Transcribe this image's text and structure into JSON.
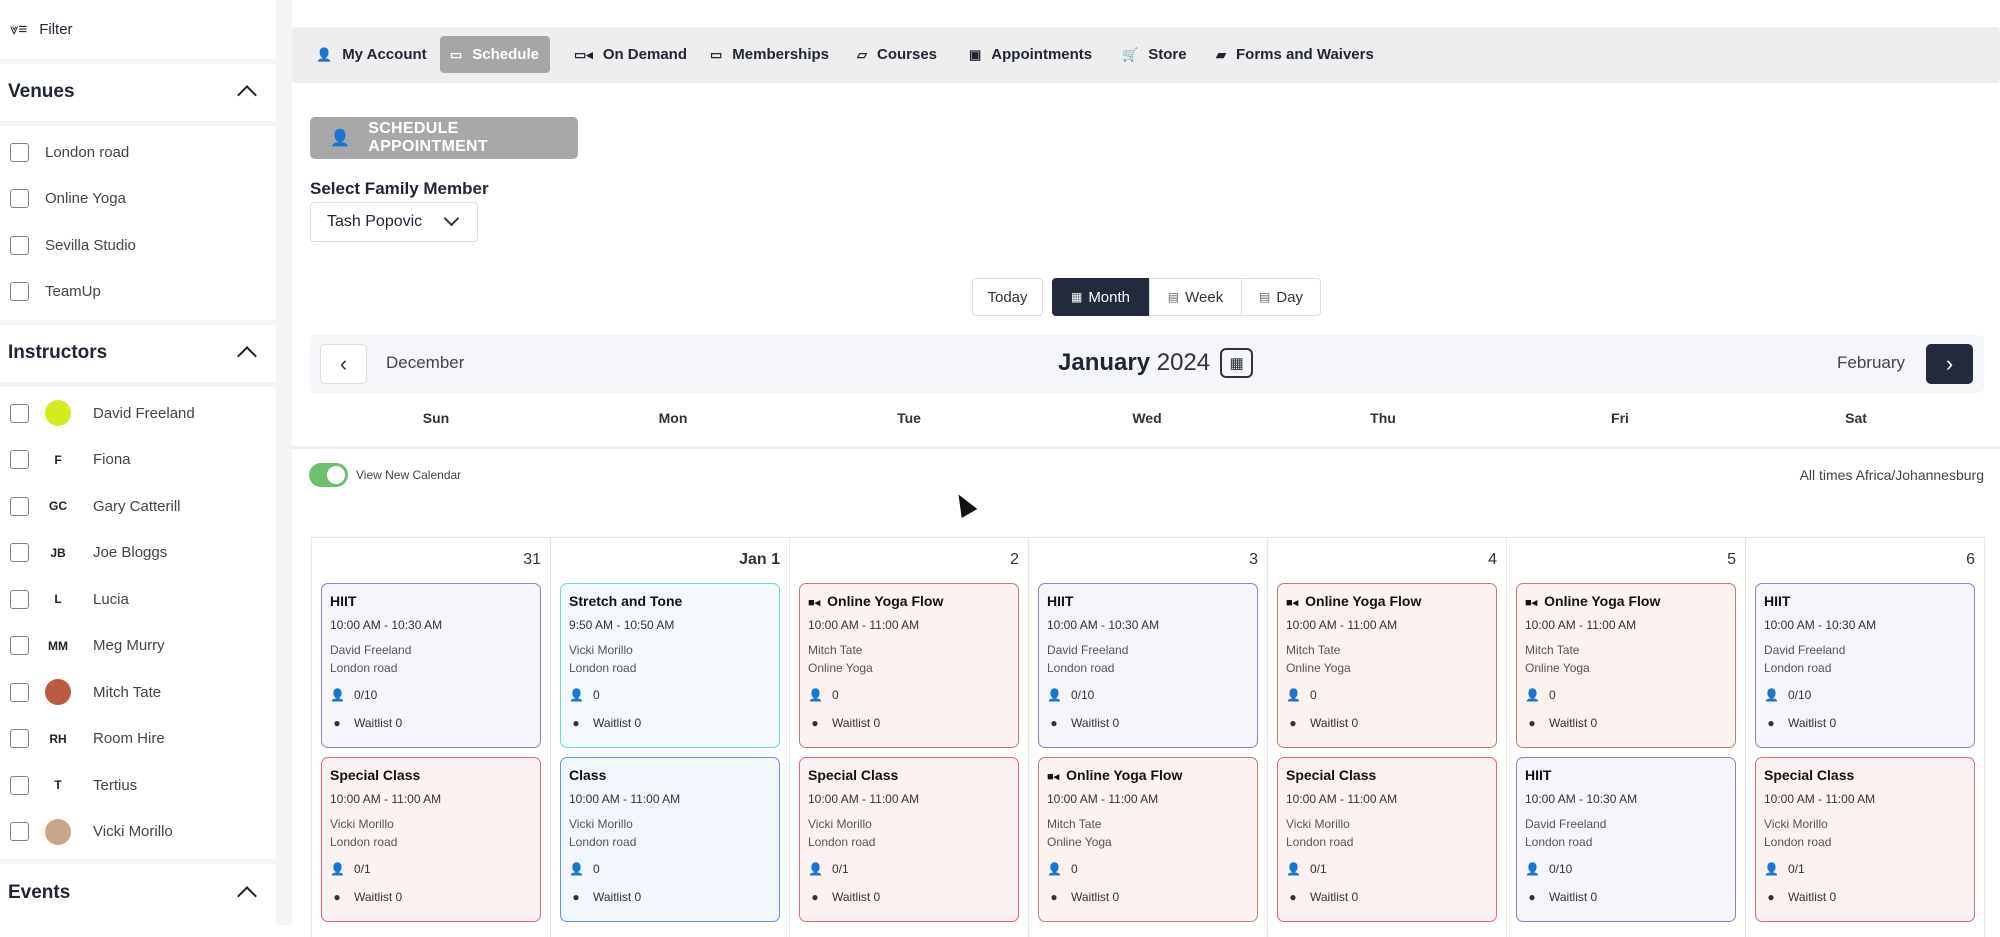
{
  "sidebar": {
    "filter_label": "Filter",
    "venues": {
      "title": "Venues",
      "items": [
        "London road",
        "Online Yoga",
        "Sevilla Studio",
        "TeamUp"
      ]
    },
    "instructors": {
      "title": "Instructors",
      "items": [
        {
          "name": "David Freeland",
          "avatar": "image",
          "color": "#d4ec1c"
        },
        {
          "name": "Fiona",
          "initials": "F"
        },
        {
          "name": "Gary Catterill",
          "initials": "GC"
        },
        {
          "name": "Joe Bloggs",
          "initials": "JB"
        },
        {
          "name": "Lucia",
          "initials": "L"
        },
        {
          "name": "Meg Murry",
          "initials": "MM"
        },
        {
          "name": "Mitch Tate",
          "avatar": "image",
          "color": "#b85a40"
        },
        {
          "name": "Room Hire",
          "initials": "RH"
        },
        {
          "name": "Tertius",
          "initials": "T"
        },
        {
          "name": "Vicki Morillo",
          "avatar": "image",
          "color": "#c9a58a"
        }
      ]
    },
    "events_title": "Events"
  },
  "nav": {
    "items": [
      {
        "label": "My Account",
        "icon": "user-icon"
      },
      {
        "label": "Schedule",
        "icon": "calendar-icon",
        "active": true
      },
      {
        "label": "On Demand",
        "icon": "video-icon"
      },
      {
        "label": "Memberships",
        "icon": "card-icon"
      },
      {
        "label": "Courses",
        "icon": "courses-icon"
      },
      {
        "label": "Appointments",
        "icon": "calendar-check-icon"
      },
      {
        "label": "Store",
        "icon": "cart-icon"
      },
      {
        "label": "Forms and Waivers",
        "icon": "folder-icon"
      }
    ]
  },
  "main": {
    "schedule_appointment": "SCHEDULE APPOINTMENT",
    "family_label": "Select Family Member",
    "family_value": "Tash Popovic",
    "views": {
      "today": "Today",
      "month": "Month",
      "week": "Week",
      "day": "Day",
      "active": "month"
    },
    "prev_month": "December",
    "month": "January",
    "year": "2024",
    "next_month": "February",
    "weekdays": [
      "Sun",
      "Mon",
      "Tue",
      "Wed",
      "Thu",
      "Fri",
      "Sat"
    ],
    "toggle_label": "View New Calendar",
    "toggle_on": true,
    "timezone": "All times Africa/Johannesburg"
  },
  "colors": {
    "hiit": {
      "border": "#8d80c4",
      "bg": "#f6f5fb"
    },
    "stretch": {
      "border": "#74dcb8",
      "bg": "#f3f9fc"
    },
    "online": {
      "border": "#b5826f",
      "bg": "#fcf3f0"
    },
    "special": {
      "border": "#e06678",
      "bg": "#fdf2f2"
    },
    "class": {
      "border": "#6193ea",
      "bg": "#f2f7fe"
    },
    "dark": "#232a3d"
  },
  "days": [
    {
      "date": "31",
      "events": [
        {
          "title": "HIIT",
          "type": "hiit",
          "time": "10:00 AM - 10:30 AM",
          "instructor": "David Freeland",
          "venue": "London road",
          "count": "0/10",
          "waitlist": "Waitlist 0"
        },
        {
          "title": "Special Class",
          "type": "special",
          "time": "10:00 AM - 11:00 AM",
          "instructor": "Vicki Morillo",
          "venue": "London road",
          "count": "0/1",
          "waitlist": "Waitlist 0"
        }
      ]
    },
    {
      "date": "Jan 1",
      "bold": true,
      "events": [
        {
          "title": "Stretch and Tone",
          "type": "stretch",
          "time": "9:50 AM - 10:50 AM",
          "instructor": "Vicki Morillo",
          "venue": "London road",
          "count": "0",
          "waitlist": "Waitlist 0"
        },
        {
          "title": "Class",
          "type": "class",
          "time": "10:00 AM - 11:00 AM",
          "instructor": "Vicki Morillo",
          "venue": "London road",
          "count": "0",
          "waitlist": "Waitlist 0"
        }
      ]
    },
    {
      "date": "2",
      "events": [
        {
          "title": "Online Yoga Flow",
          "type": "online",
          "video": true,
          "time": "10:00 AM - 11:00 AM",
          "instructor": "Mitch Tate",
          "venue": "Online Yoga",
          "count": "0",
          "waitlist": "Waitlist 0"
        },
        {
          "title": "Special Class",
          "type": "special",
          "time": "10:00 AM - 11:00 AM",
          "instructor": "Vicki Morillo",
          "venue": "London road",
          "count": "0/1",
          "waitlist": "Waitlist 0"
        }
      ]
    },
    {
      "date": "3",
      "events": [
        {
          "title": "HIIT",
          "type": "hiit",
          "time": "10:00 AM - 10:30 AM",
          "instructor": "David Freeland",
          "venue": "London road",
          "count": "0/10",
          "waitlist": "Waitlist 0"
        },
        {
          "title": "Online Yoga Flow",
          "type": "online",
          "video": true,
          "time": "10:00 AM - 11:00 AM",
          "instructor": "Mitch Tate",
          "venue": "Online Yoga",
          "count": "0",
          "waitlist": "Waitlist 0"
        }
      ]
    },
    {
      "date": "4",
      "events": [
        {
          "title": "Online Yoga Flow",
          "type": "online",
          "video": true,
          "time": "10:00 AM - 11:00 AM",
          "instructor": "Mitch Tate",
          "venue": "Online Yoga",
          "count": "0",
          "waitlist": "Waitlist 0"
        },
        {
          "title": "Special Class",
          "type": "special",
          "time": "10:00 AM - 11:00 AM",
          "instructor": "Vicki Morillo",
          "venue": "London road",
          "count": "0/1",
          "waitlist": "Waitlist 0"
        }
      ]
    },
    {
      "date": "5",
      "events": [
        {
          "title": "Online Yoga Flow",
          "type": "online",
          "video": true,
          "time": "10:00 AM - 11:00 AM",
          "instructor": "Mitch Tate",
          "venue": "Online Yoga",
          "count": "0",
          "waitlist": "Waitlist 0"
        },
        {
          "title": "HIIT",
          "type": "hiit",
          "time": "10:00 AM - 10:30 AM",
          "instructor": "David Freeland",
          "venue": "London road",
          "count": "0/10",
          "waitlist": "Waitlist 0"
        }
      ]
    },
    {
      "date": "6",
      "events": [
        {
          "title": "HIIT",
          "type": "hiit",
          "time": "10:00 AM - 10:30 AM",
          "instructor": "David Freeland",
          "venue": "London road",
          "count": "0/10",
          "waitlist": "Waitlist 0"
        },
        {
          "title": "Special Class",
          "type": "special",
          "time": "10:00 AM - 11:00 AM",
          "instructor": "Vicki Morillo",
          "venue": "London road",
          "count": "0/1",
          "waitlist": "Waitlist 0"
        }
      ]
    }
  ]
}
